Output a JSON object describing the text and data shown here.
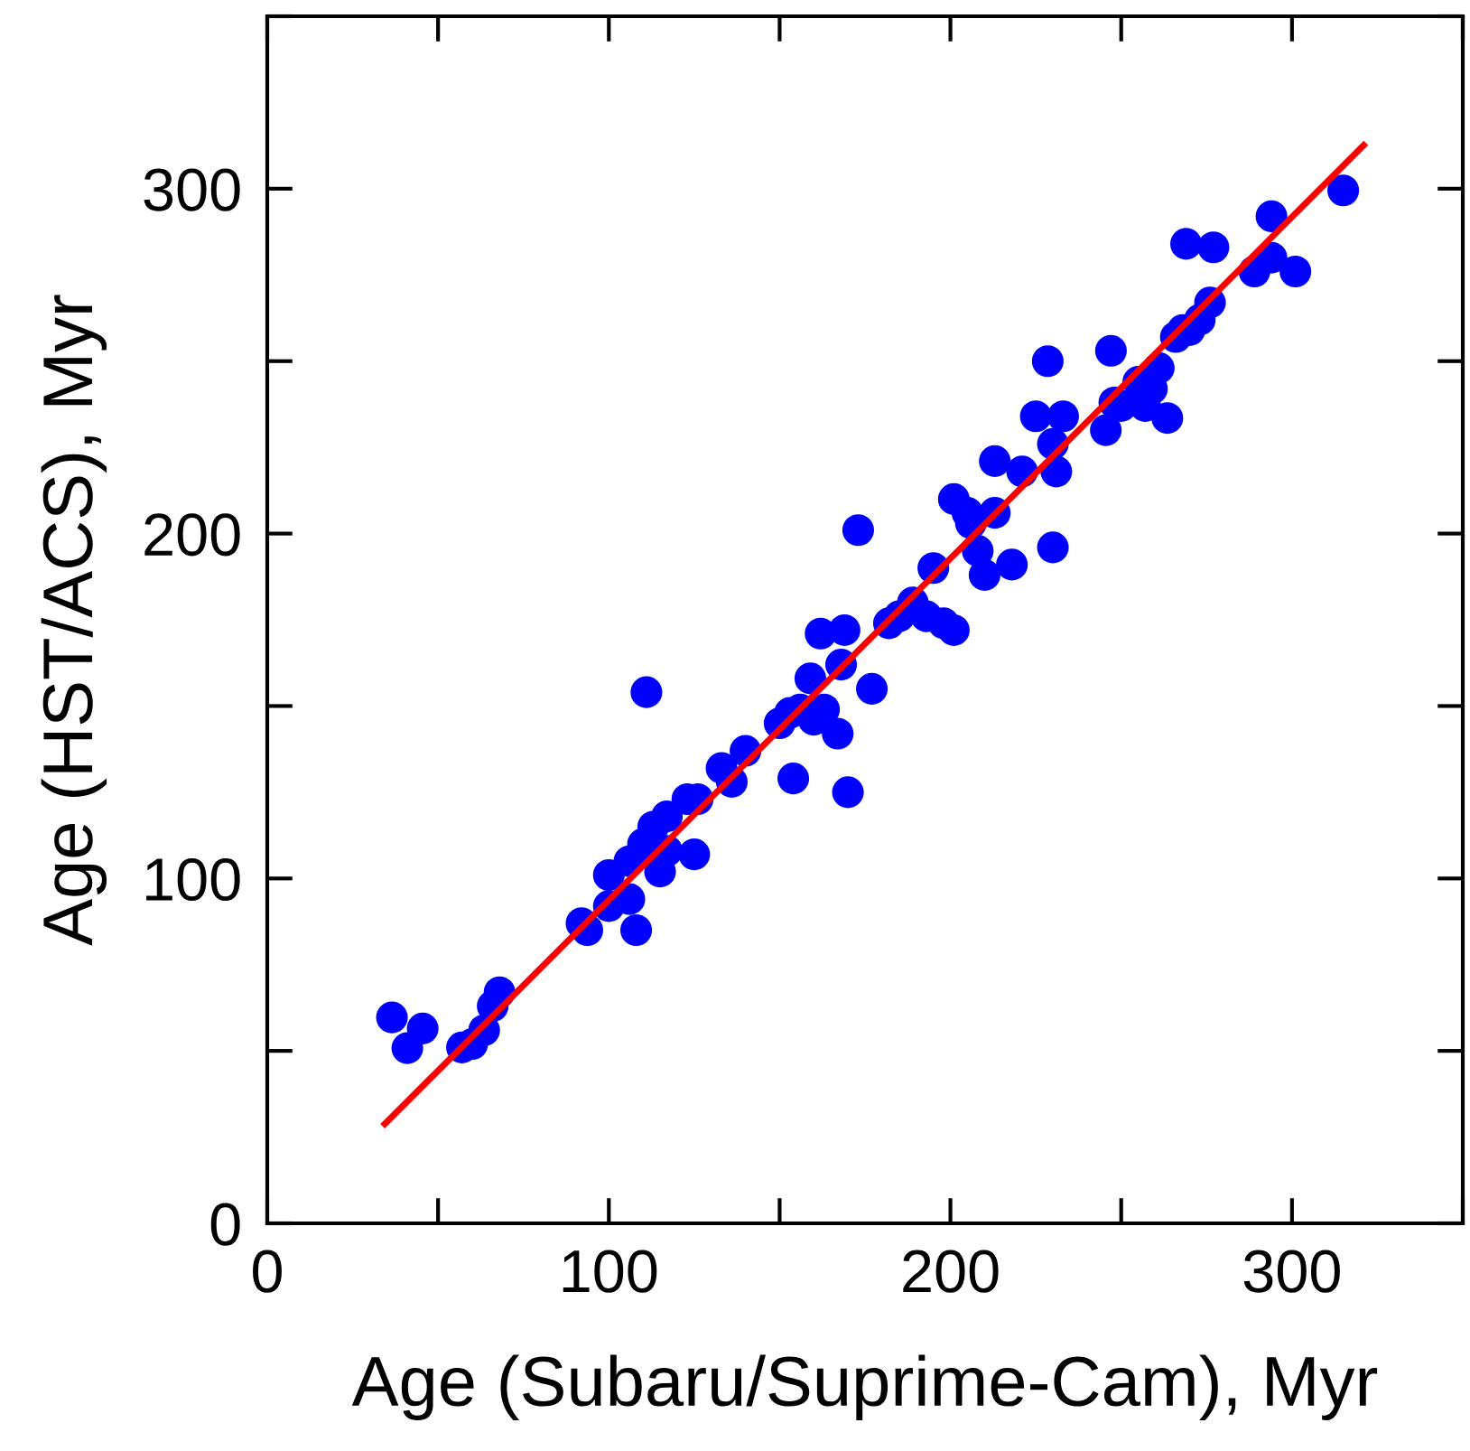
{
  "chart_data": {
    "type": "scatter",
    "xlabel": "Age (Subaru/Suprime-Cam), Myr",
    "ylabel": "Age (HST/ACS), Myr",
    "xlim": [
      0,
      350
    ],
    "ylim": [
      0,
      350
    ],
    "xticks": [
      0,
      {
        "value": 50,
        "label": null
      },
      100,
      {
        "value": 150,
        "label": null
      },
      200,
      {
        "value": 250,
        "label": null
      },
      300,
      {
        "value": 350,
        "label": null
      }
    ],
    "yticks": [
      0,
      {
        "value": 50,
        "label": null
      },
      100,
      {
        "value": 150,
        "label": null
      },
      200,
      {
        "value": 250,
        "label": null
      },
      300,
      {
        "value": 350,
        "label": null
      }
    ],
    "grid": false,
    "series": [
      {
        "color": "#0000ff",
        "marker": "circle",
        "x": [
          36.5,
          41,
          45.5,
          57,
          60,
          63.5,
          66,
          68,
          92,
          93.7,
          100,
          100,
          106,
          106,
          108,
          110,
          111,
          113,
          115,
          117,
          117,
          123,
          125,
          126,
          133,
          136,
          140,
          150,
          153,
          154,
          156,
          159,
          160,
          162,
          163,
          167,
          169,
          168,
          170,
          173,
          177,
          182,
          185,
          189,
          193,
          195,
          198,
          201,
          201,
          205,
          206,
          208,
          210,
          213,
          213,
          218,
          221,
          225,
          228.5,
          230,
          230,
          231,
          233,
          245.5,
          247,
          248,
          250,
          255,
          257,
          259,
          261,
          263.5,
          266,
          268,
          269,
          270,
          273,
          276,
          277,
          289,
          294,
          294,
          301,
          315
        ],
        "values": [
          59.7,
          50.8,
          56.5,
          51,
          52,
          56,
          63,
          67,
          87,
          85,
          101,
          92,
          105,
          94,
          85,
          110,
          154,
          115,
          102,
          118,
          108,
          123,
          107,
          123,
          132,
          128,
          137,
          145,
          148,
          129,
          149,
          158,
          146,
          171,
          149,
          142,
          172,
          162,
          125,
          201,
          155,
          174,
          176,
          180,
          176,
          190,
          174,
          172,
          210,
          206,
          203,
          195,
          188,
          221,
          206,
          191,
          218,
          234,
          250,
          196,
          226,
          218,
          234,
          230,
          253,
          238,
          237,
          244,
          237,
          242,
          248,
          233.5,
          257,
          259,
          284,
          259,
          262,
          267,
          283,
          276,
          292,
          280,
          276,
          299.5
        ]
      },
      {
        "type": "line",
        "color": "#ff0000",
        "line_style": "solid",
        "marker": "none",
        "x": [
          34.4,
          321
        ],
        "values": [
          28.8,
          312.6
        ]
      }
    ]
  }
}
